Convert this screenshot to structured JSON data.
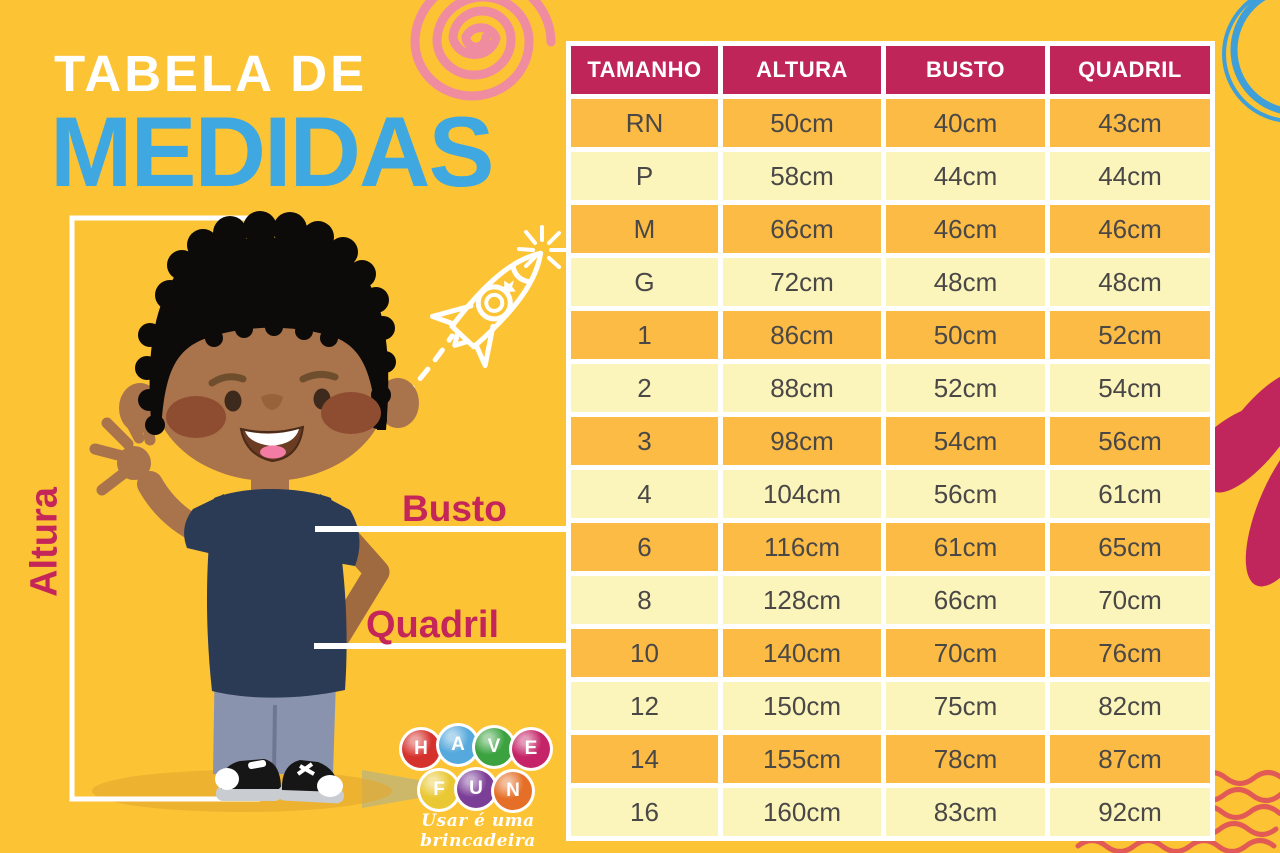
{
  "title": {
    "line1": "TABELA DE",
    "line2": "MEDIDAS"
  },
  "figure_labels": {
    "altura": "Altura",
    "busto": "Busto",
    "quadril": "Quadril"
  },
  "table": {
    "headers": [
      "TAMANHO",
      "ALTURA",
      "BUSTO",
      "QUADRIL"
    ],
    "rows": [
      [
        "RN",
        "50cm",
        "40cm",
        "43cm"
      ],
      [
        "P",
        "58cm",
        "44cm",
        "44cm"
      ],
      [
        "M",
        "66cm",
        "46cm",
        "46cm"
      ],
      [
        "G",
        "72cm",
        "48cm",
        "48cm"
      ],
      [
        "1",
        "86cm",
        "50cm",
        "52cm"
      ],
      [
        "2",
        "88cm",
        "52cm",
        "54cm"
      ],
      [
        "3",
        "98cm",
        "54cm",
        "56cm"
      ],
      [
        "4",
        "104cm",
        "56cm",
        "61cm"
      ],
      [
        "6",
        "116cm",
        "61cm",
        "65cm"
      ],
      [
        "8",
        "128cm",
        "66cm",
        "70cm"
      ],
      [
        "10",
        "140cm",
        "70cm",
        "76cm"
      ],
      [
        "12",
        "150cm",
        "75cm",
        "82cm"
      ],
      [
        "14",
        "155cm",
        "78cm",
        "87cm"
      ],
      [
        "16",
        "160cm",
        "83cm",
        "92cm"
      ]
    ]
  },
  "logo": {
    "letters": [
      {
        "ch": "H",
        "color": "#D6322D"
      },
      {
        "ch": "A",
        "color": "#56A9DC"
      },
      {
        "ch": "V",
        "color": "#3BA23F"
      },
      {
        "ch": "E",
        "color": "#C52468"
      },
      {
        "ch": "F",
        "color": "#EAC833"
      },
      {
        "ch": "U",
        "color": "#7C3F98"
      },
      {
        "ch": "N",
        "color": "#E56F26"
      }
    ],
    "tagline": "Usar é uma brincadeira"
  },
  "colors": {
    "background": "#FCC335",
    "table_header": "#C0255A",
    "row_orange": "#FBBB45",
    "row_cream": "#FBF4BB",
    "title_blue": "#3FA8E0",
    "label_crimson": "#C5265A",
    "cell_text": "#4A4847",
    "waves_red": "#E25A55",
    "spiral_pink": "#F08CA0",
    "circle_blue": "#3E9FD9"
  },
  "chart_data": {
    "type": "table",
    "title": "Tabela de Medidas",
    "columns": [
      "TAMANHO",
      "ALTURA",
      "BUSTO",
      "QUADRIL"
    ],
    "units": "cm",
    "rows": [
      {
        "tamanho": "RN",
        "altura": 50,
        "busto": 40,
        "quadril": 43
      },
      {
        "tamanho": "P",
        "altura": 58,
        "busto": 44,
        "quadril": 44
      },
      {
        "tamanho": "M",
        "altura": 66,
        "busto": 46,
        "quadril": 46
      },
      {
        "tamanho": "G",
        "altura": 72,
        "busto": 48,
        "quadril": 48
      },
      {
        "tamanho": "1",
        "altura": 86,
        "busto": 50,
        "quadril": 52
      },
      {
        "tamanho": "2",
        "altura": 88,
        "busto": 52,
        "quadril": 54
      },
      {
        "tamanho": "3",
        "altura": 98,
        "busto": 54,
        "quadril": 56
      },
      {
        "tamanho": "4",
        "altura": 104,
        "busto": 56,
        "quadril": 61
      },
      {
        "tamanho": "6",
        "altura": 116,
        "busto": 61,
        "quadril": 65
      },
      {
        "tamanho": "8",
        "altura": 128,
        "busto": 66,
        "quadril": 70
      },
      {
        "tamanho": "10",
        "altura": 140,
        "busto": 70,
        "quadril": 76
      },
      {
        "tamanho": "12",
        "altura": 150,
        "busto": 75,
        "quadril": 82
      },
      {
        "tamanho": "14",
        "altura": 155,
        "busto": 78,
        "quadril": 87
      },
      {
        "tamanho": "16",
        "altura": 160,
        "busto": 83,
        "quadril": 92
      }
    ]
  }
}
